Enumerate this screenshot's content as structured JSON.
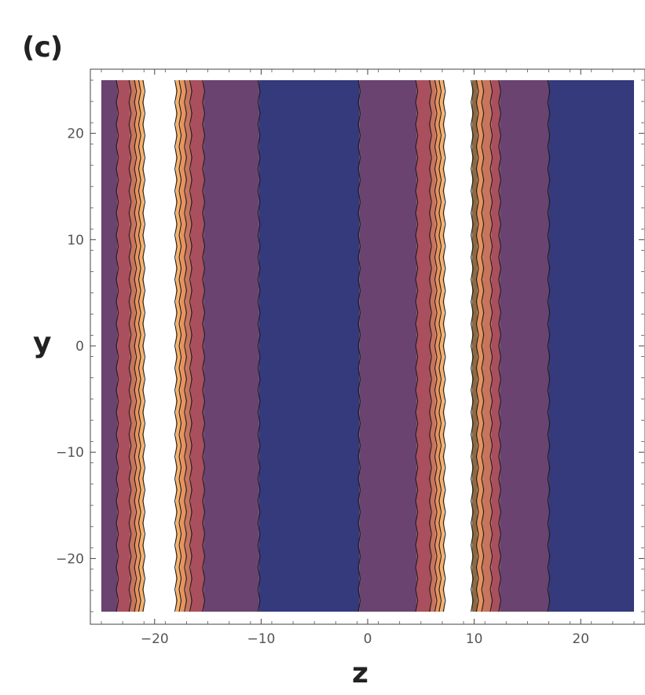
{
  "panel_label": "(c)",
  "chart_data": {
    "type": "contour",
    "xlabel": "z",
    "ylabel": "y",
    "xlim": [
      -25,
      25
    ],
    "ylim": [
      -25,
      25
    ],
    "x_ticks": [
      -20,
      -10,
      0,
      10,
      20
    ],
    "y_ticks": [
      20,
      10,
      0,
      -10,
      -20
    ],
    "x_tick_labels": [
      "−20",
      "−10",
      "0",
      "10",
      "20"
    ],
    "y_tick_labels": [
      "20",
      "10",
      "0",
      "−10",
      "−20"
    ],
    "grid": false,
    "legend": "none",
    "colors": {
      "low": "#343a7b",
      "mid": "#6a4371",
      "mid_high": "#aa4f5d",
      "high": "#f4a468",
      "line": "#1e1e1e"
    },
    "bands": [
      {
        "z_start": -25,
        "z_end": -23.5,
        "color": "#6a4371"
      },
      {
        "z_start": -23.5,
        "z_end": -22.3,
        "color": "#aa4f5d"
      },
      {
        "z_start": -22.3,
        "z_end": -21.8,
        "color": "#c9745d"
      },
      {
        "z_start": -21.8,
        "z_end": -21.4,
        "color": "#e6935f"
      },
      {
        "z_start": -21.4,
        "z_end": -21.0,
        "color": "#f5b06c"
      },
      {
        "z_start": -21.0,
        "z_end": -18.0,
        "color": "#ffffff"
      },
      {
        "z_start": -18.0,
        "z_end": -17.6,
        "color": "#f5b06c"
      },
      {
        "z_start": -17.6,
        "z_end": -17.1,
        "color": "#e6935f"
      },
      {
        "z_start": -17.1,
        "z_end": -16.6,
        "color": "#c9745d"
      },
      {
        "z_start": -16.6,
        "z_end": -15.4,
        "color": "#aa4f5d"
      },
      {
        "z_start": -15.4,
        "z_end": -10.2,
        "color": "#6a4371"
      },
      {
        "z_start": -10.2,
        "z_end": -0.8,
        "color": "#343a7b"
      },
      {
        "z_start": -0.8,
        "z_end": 4.6,
        "color": "#6a4371"
      },
      {
        "z_start": 4.6,
        "z_end": 5.9,
        "color": "#aa4f5d"
      },
      {
        "z_start": 5.9,
        "z_end": 6.4,
        "color": "#c9745d"
      },
      {
        "z_start": 6.4,
        "z_end": 6.8,
        "color": "#e6935f"
      },
      {
        "z_start": 6.8,
        "z_end": 7.2,
        "color": "#f5b06c"
      },
      {
        "z_start": 7.2,
        "z_end": 9.8,
        "color": "#ffffff"
      },
      {
        "z_start": 9.8,
        "z_end": 10.3,
        "color": "#8b6a45"
      },
      {
        "z_start": 10.3,
        "z_end": 10.8,
        "color": "#e6935f"
      },
      {
        "z_start": 10.8,
        "z_end": 11.6,
        "color": "#c9745d"
      },
      {
        "z_start": 11.6,
        "z_end": 12.4,
        "color": "#aa4f5d"
      },
      {
        "z_start": 12.4,
        "z_end": 17.0,
        "color": "#6a4371"
      },
      {
        "z_start": 17.0,
        "z_end": 25,
        "color": "#343a7b"
      }
    ],
    "contour_lines_z": [
      -23.5,
      -22.3,
      -21.8,
      -21.4,
      -21.0,
      -18.0,
      -17.6,
      -17.1,
      -16.6,
      -15.4,
      -10.2,
      -0.8,
      4.6,
      5.9,
      6.4,
      6.8,
      7.2,
      9.8,
      10.3,
      10.8,
      11.6,
      12.4,
      17.0
    ]
  }
}
